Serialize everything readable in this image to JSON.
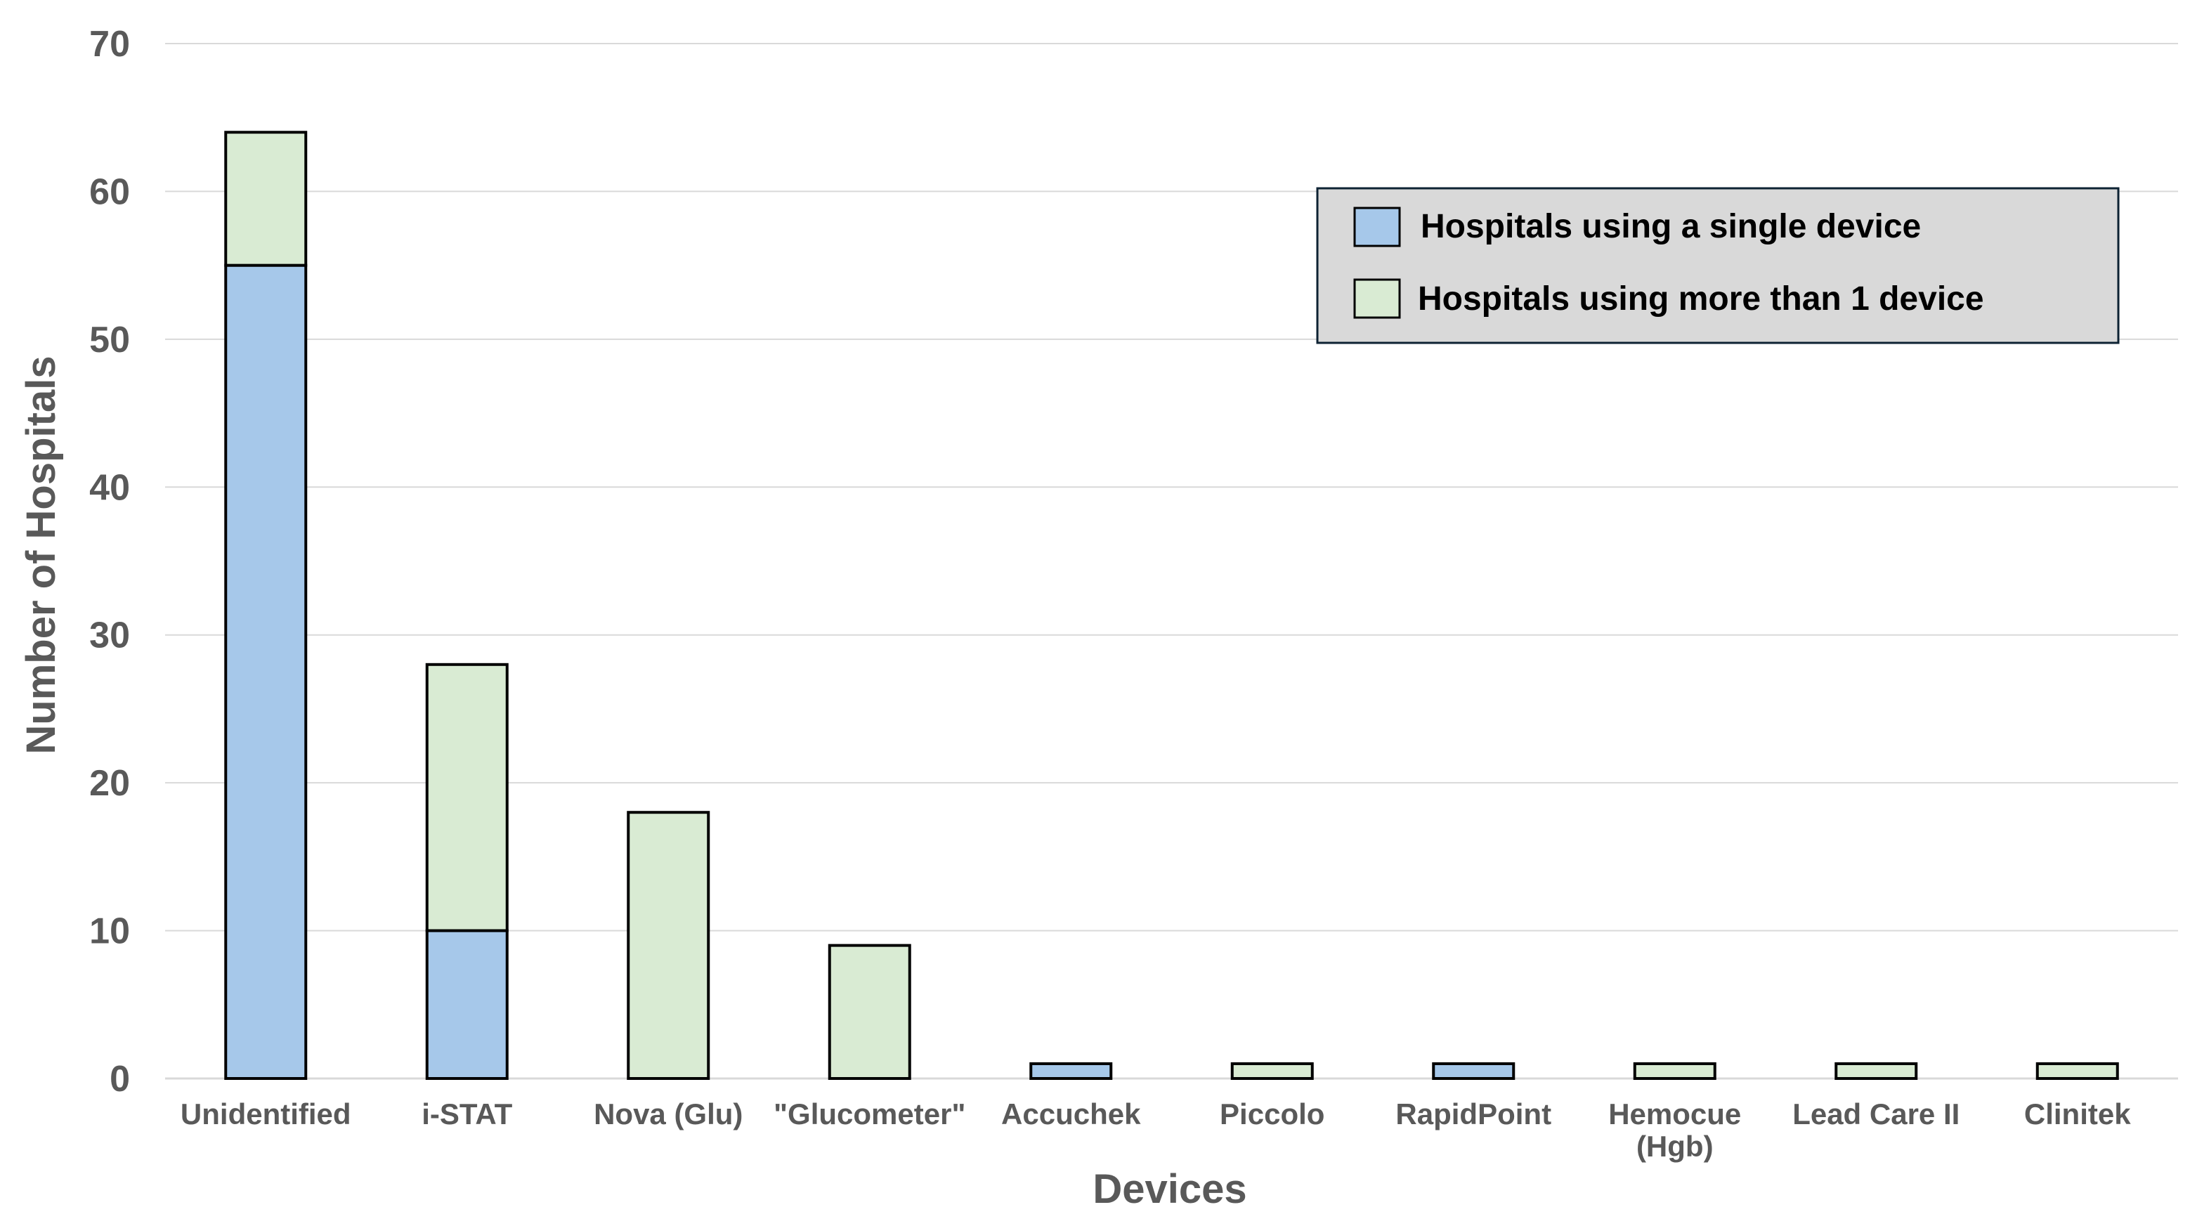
{
  "chart_data": {
    "type": "bar",
    "stacked": true,
    "title": "",
    "xlabel": "Devices",
    "ylabel": "Number of Hospitals",
    "ylim": [
      0,
      70
    ],
    "yticks": [
      0,
      10,
      20,
      30,
      40,
      50,
      60,
      70
    ],
    "grid": true,
    "legend_position": "top-right",
    "categories": [
      [
        "Unidentified"
      ],
      [
        "i-STAT"
      ],
      [
        "Nova (Glu)"
      ],
      [
        "\"Glucometer\""
      ],
      [
        "Accuchek"
      ],
      [
        "Piccolo"
      ],
      [
        "RapidPoint"
      ],
      [
        "Hemocue",
        "(Hgb)"
      ],
      [
        "Lead Care II"
      ],
      [
        "Clinitek"
      ]
    ],
    "series": [
      {
        "name": "Hospitals using a single device",
        "color": "#A6C8EA",
        "values": [
          55,
          10,
          0,
          0,
          1,
          0,
          1,
          0,
          0,
          0
        ]
      },
      {
        "name": "Hospitals using more than 1 device",
        "color": "#D9EBD3",
        "values": [
          9,
          18,
          18,
          9,
          0,
          1,
          0,
          1,
          1,
          1
        ]
      }
    ]
  },
  "colors": {
    "gridline": "#D9D9D9",
    "bar_stroke": "#000000",
    "legend_fill": "#D9D9D9",
    "legend_border": "#0D2233",
    "tick_text": "#595959"
  }
}
